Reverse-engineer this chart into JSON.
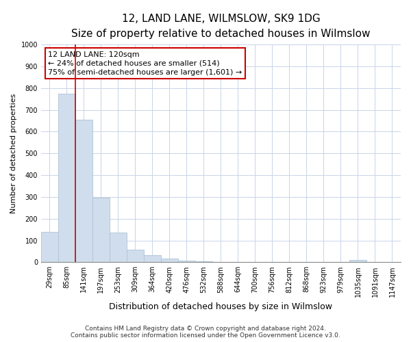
{
  "title": "12, LAND LANE, WILMSLOW, SK9 1DG",
  "subtitle": "Size of property relative to detached houses in Wilmslow",
  "xlabel": "Distribution of detached houses by size in Wilmslow",
  "ylabel": "Number of detached properties",
  "bar_labels": [
    "29sqm",
    "85sqm",
    "141sqm",
    "197sqm",
    "253sqm",
    "309sqm",
    "364sqm",
    "420sqm",
    "476sqm",
    "532sqm",
    "588sqm",
    "644sqm",
    "700sqm",
    "756sqm",
    "812sqm",
    "868sqm",
    "923sqm",
    "979sqm",
    "1035sqm",
    "1091sqm",
    "1147sqm"
  ],
  "bar_values": [
    140,
    775,
    655,
    295,
    135,
    57,
    32,
    17,
    8,
    3,
    0,
    0,
    0,
    0,
    0,
    0,
    0,
    0,
    10,
    0,
    0
  ],
  "bar_color": "#cfdded",
  "bar_edge_color": "#aec4d8",
  "vline_color": "#cc0000",
  "annotation_line1": "12 LAND LANE: 120sqm",
  "annotation_line2": "← 24% of detached houses are smaller (514)",
  "annotation_line3": "75% of semi-detached houses are larger (1,601) →",
  "annotation_box_color": "#ffffff",
  "annotation_box_edge": "#cc0000",
  "ylim": [
    0,
    1000
  ],
  "yticks": [
    0,
    100,
    200,
    300,
    400,
    500,
    600,
    700,
    800,
    900,
    1000
  ],
  "grid_color": "#c8d4e8",
  "footer_line1": "Contains HM Land Registry data © Crown copyright and database right 2024.",
  "footer_line2": "Contains public sector information licensed under the Open Government Licence v3.0.",
  "title_fontsize": 11,
  "subtitle_fontsize": 9.5,
  "xlabel_fontsize": 9,
  "ylabel_fontsize": 8,
  "tick_fontsize": 7,
  "annotation_fontsize": 8,
  "footer_fontsize": 6.5
}
